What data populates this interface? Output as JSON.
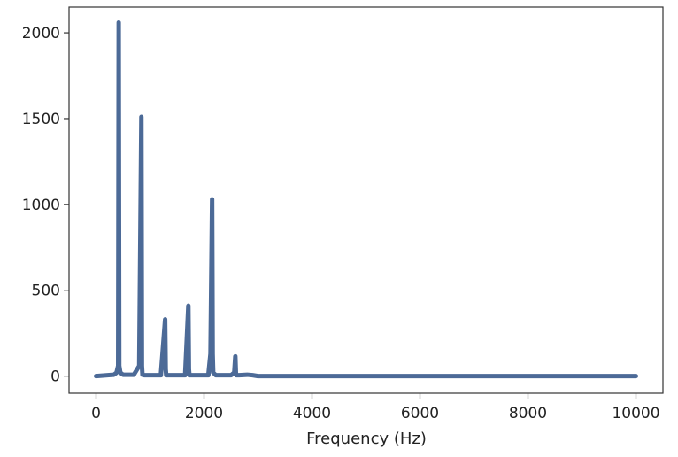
{
  "chart_data": {
    "type": "line",
    "title": "",
    "xlabel": "Frequency (Hz)",
    "ylabel": "",
    "xlim": [
      -500,
      10500
    ],
    "ylim": [
      -100,
      2150
    ],
    "xticks": [
      0,
      2000,
      4000,
      6000,
      8000,
      10000
    ],
    "yticks": [
      0,
      500,
      1000,
      1500,
      2000
    ],
    "grid": false,
    "legend": "none",
    "series": [
      {
        "color": "#4c6a97",
        "x": [
          0,
          330,
          380,
          410,
          420,
          430,
          450,
          500,
          700,
          800,
          840,
          850,
          860,
          900,
          1200,
          1280,
          1290,
          1300,
          1350,
          1650,
          1710,
          1720,
          1730,
          1800,
          2080,
          2120,
          2150,
          2160,
          2170,
          2220,
          2500,
          2560,
          2580,
          2590,
          2600,
          2650,
          2800,
          2900,
          3000,
          10000
        ],
        "y": [
          0,
          8,
          20,
          60,
          2060,
          60,
          20,
          8,
          8,
          60,
          1510,
          60,
          8,
          5,
          5,
          330,
          40,
          5,
          5,
          5,
          410,
          40,
          5,
          5,
          5,
          130,
          1030,
          130,
          20,
          5,
          5,
          20,
          115,
          20,
          5,
          5,
          8,
          5,
          0,
          0
        ]
      }
    ]
  }
}
